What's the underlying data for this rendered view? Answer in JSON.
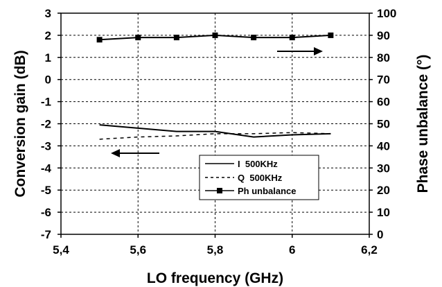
{
  "chart_data": {
    "type": "line",
    "xlabel": "LO frequency (GHz)",
    "ylabel": "Conversion gain (dB)",
    "y2label": "Phase unbalance (°)",
    "xlim": [
      5.4,
      6.2
    ],
    "ylim": [
      -7,
      3
    ],
    "y2lim": [
      0,
      100
    ],
    "x_ticks": [
      "5,4",
      "5,6",
      "5,8",
      "6",
      "6,2"
    ],
    "x_tick_values": [
      5.4,
      5.6,
      5.8,
      6.0,
      6.2
    ],
    "y_ticks": [
      "3",
      "2",
      "1",
      "0",
      "-1",
      "-2",
      "-3",
      "-4",
      "-5",
      "-6",
      "-7"
    ],
    "y_tick_values": [
      3,
      2,
      1,
      0,
      -1,
      -2,
      -3,
      -4,
      -5,
      -6,
      -7
    ],
    "y2_ticks": [
      "100",
      "90",
      "80",
      "70",
      "60",
      "50",
      "40",
      "30",
      "20",
      "10",
      "0"
    ],
    "y2_tick_values": [
      100,
      90,
      80,
      70,
      60,
      50,
      40,
      30,
      20,
      10,
      0
    ],
    "x_grid": [
      5.6,
      5.8,
      6.0
    ],
    "grid": true,
    "x": [
      5.5,
      5.6,
      5.7,
      5.8,
      5.9,
      6.0,
      6.1
    ],
    "series": [
      {
        "name": "I  500KHz",
        "axis": "left",
        "style": "solid",
        "color": "#000000",
        "values": [
          -2.05,
          -2.2,
          -2.35,
          -2.35,
          -2.6,
          -2.5,
          -2.45
        ]
      },
      {
        "name": "Q  500KHz",
        "axis": "left",
        "style": "dashed",
        "color": "#000000",
        "values": [
          -2.7,
          -2.6,
          -2.55,
          -2.45,
          -2.45,
          -2.4,
          -2.45
        ]
      },
      {
        "name": "Ph unbalance",
        "axis": "right",
        "style": "solid-square-markers",
        "color": "#000000",
        "values": [
          88,
          89,
          89,
          90,
          89,
          89,
          90
        ]
      }
    ],
    "legend_position": "bottom-right",
    "annotations": [
      {
        "type": "arrow",
        "direction": "right",
        "meaning": "Ph unbalance refers to right axis"
      },
      {
        "type": "arrow",
        "direction": "left",
        "meaning": "I/Q refer to left axis"
      }
    ]
  }
}
